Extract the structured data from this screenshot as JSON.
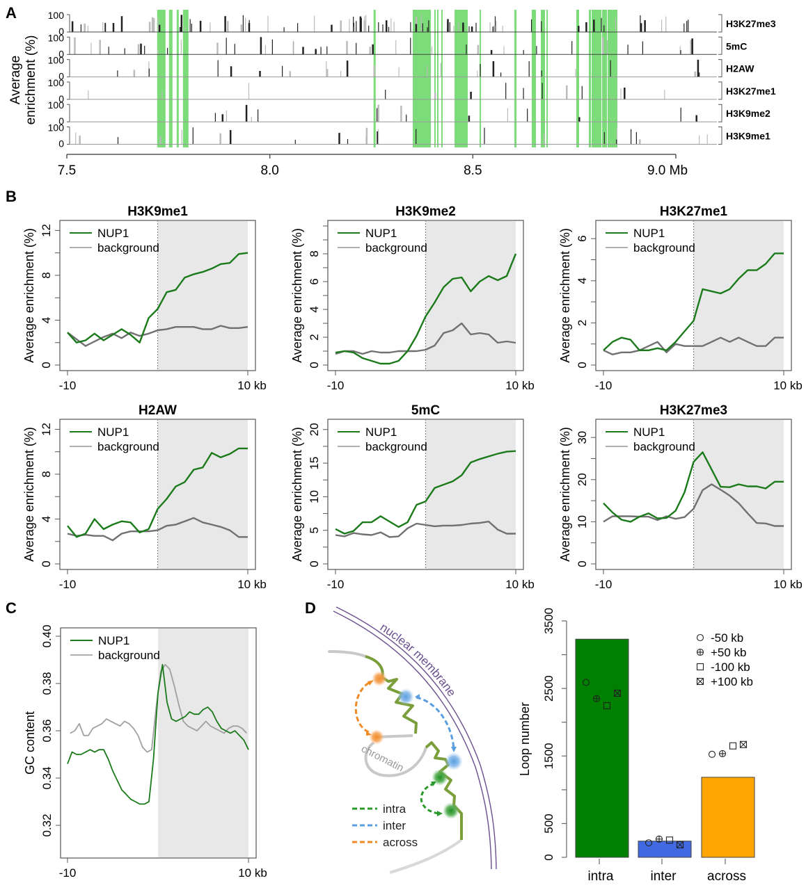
{
  "panel_labels": {
    "A": "A",
    "B": "B",
    "C": "C",
    "D": "D"
  },
  "chart_data": [
    {
      "id": "A",
      "type": "track",
      "title": "",
      "ylabel": "Average\nenrichment (%)",
      "ylabel_lines": [
        "Average",
        "enrichment (%)"
      ],
      "ytick_labels": [
        "100",
        "0"
      ],
      "xlabel_unit": "Mb",
      "xlim": [
        7.5,
        9.0
      ],
      "xticks": [
        7.5,
        8.0,
        8.5,
        9.0
      ],
      "xtick_labels": [
        "7.5",
        "8.0",
        "8.5",
        "9.0 Mb"
      ],
      "tracks": [
        "H3K27me3",
        "5mC",
        "H2AW",
        "H3K27me1",
        "H3K9me2",
        "H3K9me1"
      ],
      "highlight_color": "#7ddc7a",
      "highlight_regions_mb": [
        [
          7.7225,
          7.7431
        ],
        [
          7.7517,
          7.7603
        ],
        [
          7.7706,
          7.7757
        ],
        [
          7.786,
          7.7997
        ],
        [
          8.2555,
          8.2606
        ],
        [
          8.352,
          8.3966
        ],
        [
          8.4052,
          8.4086
        ],
        [
          8.412,
          8.4155
        ],
        [
          8.4223,
          8.4257
        ],
        [
          8.4549,
          8.4875
        ],
        [
          8.5166,
          8.5201
        ],
        [
          8.6024,
          8.6075
        ],
        [
          8.6452,
          8.6555
        ],
        [
          8.6675,
          8.6778
        ],
        [
          8.6812,
          8.6846
        ],
        [
          8.7549,
          8.7617
        ],
        [
          8.7857,
          8.7909
        ],
        [
          8.7926,
          8.8166
        ],
        [
          8.8183,
          8.8303
        ],
        [
          8.832,
          8.856
        ]
      ]
    },
    {
      "id": "B1",
      "type": "line",
      "title": "H3K9me1",
      "xlabel": "",
      "ylabel": "Average enrichment (%)",
      "x": [
        -10,
        -9,
        -8,
        -7,
        -6,
        -5,
        -4,
        -3,
        -2,
        -1,
        0,
        1,
        2,
        3,
        4,
        5,
        6,
        7,
        8,
        9,
        10
      ],
      "xtick_labels": [
        "-10",
        "10 kb"
      ],
      "ylim": [
        0,
        12.4
      ],
      "yticks": [
        0,
        4,
        8,
        12
      ],
      "ytick_labels": [
        "0",
        "4",
        "8",
        "12"
      ],
      "shaded_from": 0,
      "vline": 0,
      "legend": [
        "NUP1",
        "background"
      ],
      "legend_position": "top-left",
      "series": [
        {
          "name": "NUP1",
          "color": "#1a7a1a",
          "values": [
            2.9,
            2.0,
            2.2,
            2.8,
            2.2,
            2.7,
            3.2,
            2.7,
            2.0,
            4.2,
            5.0,
            6.5,
            6.7,
            7.8,
            8.1,
            8.3,
            8.6,
            9.0,
            9.1,
            9.9,
            10.0
          ]
        },
        {
          "name": "background",
          "color": "#707070",
          "values": [
            2.9,
            2.3,
            1.7,
            2.1,
            2.5,
            2.8,
            2.4,
            2.9,
            2.6,
            2.8,
            3.1,
            3.2,
            3.4,
            3.4,
            3.4,
            3.2,
            3.2,
            3.5,
            3.3,
            3.3,
            3.4
          ]
        }
      ]
    },
    {
      "id": "B2",
      "type": "line",
      "title": "H3K9me2",
      "xlabel": "",
      "ylabel": "Average enrichment (%)",
      "x": [
        -10,
        -9,
        -8,
        -7,
        -6,
        -5,
        -4,
        -3,
        -2,
        -1,
        0,
        1,
        2,
        3,
        4,
        5,
        6,
        7,
        8,
        9,
        10
      ],
      "xtick_labels": [
        "-10",
        "10 kb"
      ],
      "ylim": [
        0,
        10.0
      ],
      "yticks": [
        0,
        2,
        4,
        6,
        8
      ],
      "ytick_labels": [
        "0",
        "2",
        "4",
        "6",
        "8"
      ],
      "shaded_from": 0,
      "vline": 0,
      "legend": [
        "NUP1",
        "background"
      ],
      "legend_position": "top-left",
      "series": [
        {
          "name": "NUP1",
          "color": "#1a7a1a",
          "values": [
            0.9,
            1.0,
            0.9,
            0.5,
            0.3,
            0.1,
            0.1,
            0.3,
            1.0,
            2.1,
            3.5,
            4.5,
            5.6,
            6.2,
            6.3,
            5.3,
            6.0,
            6.4,
            6.1,
            6.4,
            8.0
          ]
        },
        {
          "name": "background",
          "color": "#707070",
          "values": [
            0.8,
            1.0,
            1.0,
            0.8,
            1.0,
            0.9,
            0.9,
            1.0,
            1.0,
            1.0,
            1.1,
            1.4,
            2.3,
            2.5,
            3.0,
            2.2,
            2.3,
            2.2,
            1.6,
            1.7,
            1.6
          ]
        }
      ]
    },
    {
      "id": "B3",
      "type": "line",
      "title": "H3K27me1",
      "xlabel": "",
      "ylabel": "Average enrichment (%)",
      "x": [
        -10,
        -9,
        -8,
        -7,
        -6,
        -5,
        -4,
        -3,
        -2,
        -1,
        0,
        1,
        2,
        3,
        4,
        5,
        6,
        7,
        8,
        9,
        10
      ],
      "xtick_labels": [
        "-10",
        "10 kb"
      ],
      "ylim": [
        0,
        6.6
      ],
      "yticks": [
        0,
        2,
        4,
        6
      ],
      "ytick_labels": [
        "0",
        "2",
        "4",
        "6"
      ],
      "shaded_from": 0,
      "vline": 0,
      "legend": [
        "NUP1",
        "background"
      ],
      "legend_position": "top-left",
      "series": [
        {
          "name": "NUP1",
          "color": "#1a7a1a",
          "values": [
            0.7,
            1.1,
            1.3,
            1.2,
            0.7,
            0.7,
            0.8,
            0.7,
            1.1,
            1.6,
            2.1,
            3.6,
            3.5,
            3.4,
            3.6,
            4.1,
            4.5,
            4.5,
            4.8,
            5.3,
            5.3
          ]
        },
        {
          "name": "background",
          "color": "#707070",
          "values": [
            0.7,
            0.5,
            0.6,
            0.6,
            0.7,
            0.9,
            1.1,
            0.6,
            1.0,
            0.9,
            0.9,
            0.9,
            1.1,
            1.3,
            1.1,
            1.3,
            1.1,
            0.9,
            0.9,
            1.3,
            1.3
          ]
        }
      ]
    },
    {
      "id": "B4",
      "type": "line",
      "title": "H2AW",
      "xlabel": "",
      "ylabel": "Average enrichment (%)",
      "x": [
        -10,
        -9,
        -8,
        -7,
        -6,
        -5,
        -4,
        -3,
        -2,
        -1,
        0,
        1,
        2,
        3,
        4,
        5,
        6,
        7,
        8,
        9,
        10
      ],
      "xtick_labels": [
        "-10",
        "10 kb"
      ],
      "ylim": [
        0,
        12.4
      ],
      "yticks": [
        0,
        4,
        8,
        12
      ],
      "ytick_labels": [
        "0",
        "4",
        "8",
        "12"
      ],
      "shaded_from": 0,
      "vline": 0,
      "legend": [
        "NUP1",
        "background"
      ],
      "legend_position": "top-left",
      "series": [
        {
          "name": "NUP1",
          "color": "#1a7a1a",
          "values": [
            3.4,
            2.4,
            2.7,
            4.0,
            3.1,
            3.5,
            3.8,
            3.7,
            2.8,
            3.1,
            4.9,
            5.8,
            6.9,
            7.3,
            8.4,
            8.6,
            9.9,
            9.5,
            9.8,
            10.3,
            10.3
          ]
        },
        {
          "name": "background",
          "color": "#707070",
          "values": [
            2.7,
            2.5,
            2.6,
            2.5,
            2.5,
            2.1,
            2.7,
            2.9,
            2.9,
            2.9,
            3.0,
            3.4,
            3.5,
            3.8,
            4.1,
            3.7,
            3.5,
            3.3,
            3.0,
            2.4,
            2.4
          ]
        }
      ]
    },
    {
      "id": "B5",
      "type": "line",
      "title": "5mC",
      "xlabel": "",
      "ylabel": "Average enrichment (%)",
      "x": [
        -10,
        -9,
        -8,
        -7,
        -6,
        -5,
        -4,
        -3,
        -2,
        -1,
        0,
        1,
        2,
        3,
        4,
        5,
        6,
        7,
        8,
        9,
        10
      ],
      "xtick_labels": [
        "-10",
        "10 kb"
      ],
      "ylim": [
        0,
        20.7
      ],
      "yticks": [
        0,
        5,
        10,
        15,
        20
      ],
      "ytick_labels": [
        "0",
        "5",
        "10",
        "15",
        "20"
      ],
      "shaded_from": 0,
      "vline": 0,
      "legend": [
        "NUP1",
        "background"
      ],
      "legend_position": "top-left",
      "series": [
        {
          "name": "NUP1",
          "color": "#1a7a1a",
          "values": [
            5.2,
            4.5,
            4.9,
            6.2,
            6.2,
            7.1,
            6.3,
            5.5,
            6.2,
            8.8,
            9.3,
            11.3,
            11.8,
            12.3,
            13.2,
            15.1,
            15.6,
            16.0,
            16.4,
            16.7,
            16.8
          ]
        },
        {
          "name": "background",
          "color": "#707070",
          "values": [
            4.3,
            4.1,
            4.6,
            4.4,
            4.3,
            4.7,
            4.0,
            4.1,
            5.3,
            6.0,
            5.8,
            5.6,
            5.7,
            5.7,
            5.8,
            6.0,
            6.1,
            6.3,
            5.1,
            4.5,
            4.5
          ]
        }
      ]
    },
    {
      "id": "B6",
      "type": "line",
      "title": "H3K27me3",
      "xlabel": "",
      "ylabel": "Average enrichment (%)",
      "x": [
        -10,
        -9,
        -8,
        -7,
        -6,
        -5,
        -4,
        -3,
        -2,
        -1,
        0,
        1,
        2,
        3,
        4,
        5,
        6,
        7,
        8,
        9,
        10
      ],
      "xtick_labels": [
        "-10",
        "10 kb"
      ],
      "ylim": [
        0,
        33.0
      ],
      "yticks": [
        0,
        10,
        20,
        30
      ],
      "ytick_labels": [
        "0",
        "10",
        "20",
        "30"
      ],
      "shaded_from": 0,
      "vline": 0,
      "legend": [
        "NUP1",
        "background"
      ],
      "legend_position": "top-left",
      "series": [
        {
          "name": "NUP1",
          "color": "#1a7a1a",
          "values": [
            14.4,
            12.2,
            10.5,
            10.0,
            11.2,
            12.0,
            10.8,
            10.9,
            12.6,
            17.0,
            24.2,
            26.5,
            22.4,
            18.3,
            18.2,
            18.9,
            18.4,
            18.4,
            17.9,
            19.5,
            19.5
          ]
        },
        {
          "name": "background",
          "color": "#707070",
          "values": [
            10.0,
            11.3,
            11.3,
            11.3,
            11.2,
            11.2,
            10.4,
            11.3,
            10.7,
            11.1,
            13.1,
            17.5,
            18.9,
            17.6,
            16.2,
            14.4,
            12.0,
            9.7,
            9.6,
            9.0,
            9.0
          ]
        }
      ]
    },
    {
      "id": "C",
      "type": "line",
      "title": "",
      "xlabel": "",
      "ylabel": "GC content",
      "xlim": [
        -10,
        10
      ],
      "xtick_labels": [
        "-10",
        "10 kb"
      ],
      "ylim": [
        0.309,
        0.403
      ],
      "yticks": [
        0.32,
        0.34,
        0.36,
        0.38,
        0.4
      ],
      "ytick_labels": [
        "0.32",
        "0.34",
        "0.36",
        "0.38",
        "0.40"
      ],
      "shaded_from": 0,
      "legend": [
        "NUP1",
        "background"
      ],
      "legend_position": "top-left",
      "series": [
        {
          "name": "NUP1",
          "color": "#1a7a1a",
          "x": [
            -10,
            -9.5,
            -9,
            -8.5,
            -8,
            -7.5,
            -7,
            -6.5,
            -6,
            -5.5,
            -5,
            -4.5,
            -4,
            -3.5,
            -3,
            -2.5,
            -2,
            -1.5,
            -1,
            -0.5,
            0,
            0.5,
            1,
            1.5,
            2,
            2.5,
            3,
            3.5,
            4,
            4.5,
            5,
            5.5,
            6,
            6.5,
            7,
            7.5,
            8,
            8.5,
            9,
            9.5,
            10
          ],
          "values": [
            0.346,
            0.351,
            0.35,
            0.35,
            0.351,
            0.352,
            0.351,
            0.352,
            0.352,
            0.348,
            0.343,
            0.339,
            0.335,
            0.333,
            0.331,
            0.33,
            0.329,
            0.329,
            0.33,
            0.348,
            0.376,
            0.388,
            0.372,
            0.365,
            0.364,
            0.365,
            0.366,
            0.368,
            0.367,
            0.367,
            0.369,
            0.37,
            0.368,
            0.364,
            0.361,
            0.36,
            0.359,
            0.36,
            0.358,
            0.356,
            0.352
          ]
        },
        {
          "name": "background",
          "color": "#a0a0a0",
          "x": [
            -9.7,
            -9.2,
            -8.7,
            -8.2,
            -7.7,
            -7.2,
            -6.7,
            -6.2,
            -5.7,
            -5.2,
            -4.7,
            -4.2,
            -3.7,
            -3.2,
            -2.7,
            -2.2,
            -1.7,
            -1.2,
            -0.7,
            -0.2,
            0.3,
            0.8,
            1.3,
            1.8,
            2.3,
            2.8,
            3.3,
            3.8,
            4.3,
            4.8,
            5.3,
            5.8,
            6.3,
            6.8,
            7.3,
            7.8,
            8.3,
            8.8,
            9.3,
            9.8
          ],
          "values": [
            0.359,
            0.36,
            0.363,
            0.358,
            0.358,
            0.361,
            0.362,
            0.363,
            0.365,
            0.364,
            0.363,
            0.362,
            0.364,
            0.363,
            0.361,
            0.358,
            0.353,
            0.351,
            0.352,
            0.37,
            0.385,
            0.388,
            0.386,
            0.379,
            0.371,
            0.364,
            0.362,
            0.361,
            0.36,
            0.362,
            0.364,
            0.362,
            0.361,
            0.36,
            0.359,
            0.361,
            0.362,
            0.362,
            0.361,
            0.359
          ]
        }
      ]
    },
    {
      "id": "D-bar",
      "type": "bar",
      "title": "",
      "xlabel": "",
      "ylabel": "Loop number",
      "categories": [
        "intra",
        "inter",
        "across"
      ],
      "values": [
        3230,
        240,
        1185
      ],
      "colors": [
        "#008000",
        "#4169e1",
        "#ffa500"
      ],
      "ylim": [
        0,
        3500
      ],
      "yticks": [
        0,
        500,
        1000,
        1500,
        2000,
        2500,
        3000,
        3500
      ],
      "ytick_labels": [
        "0",
        "500",
        "",
        "1500",
        "",
        "2500",
        "",
        "3500"
      ],
      "legend_position": "top-right",
      "markers": [
        {
          "name": "-50 kb",
          "symbol": "circle",
          "values": [
            2590,
            215,
            1525
          ]
        },
        {
          "name": "+50 kb",
          "symbol": "circle-plus",
          "values": [
            2350,
            270,
            1535
          ]
        },
        {
          "name": "-100 kb",
          "symbol": "square",
          "values": [
            2245,
            255,
            1650
          ]
        },
        {
          "name": "+100 kb",
          "symbol": "square-x",
          "values": [
            2430,
            185,
            1670
          ]
        }
      ]
    }
  ],
  "diagram_D": {
    "membrane_label": "nuclear membrane",
    "chromatin_label": "chromatin",
    "legend": [
      {
        "label": "intra",
        "color": "#2a9a2a"
      },
      {
        "label": "inter",
        "color": "#5a9ee0"
      },
      {
        "label": "across",
        "color": "#f08a24"
      }
    ],
    "colors": {
      "membrane": "#6a4f8f",
      "chromatin_grey": "#c8c8c8",
      "chromatin_green": "#7a9e3a"
    }
  }
}
